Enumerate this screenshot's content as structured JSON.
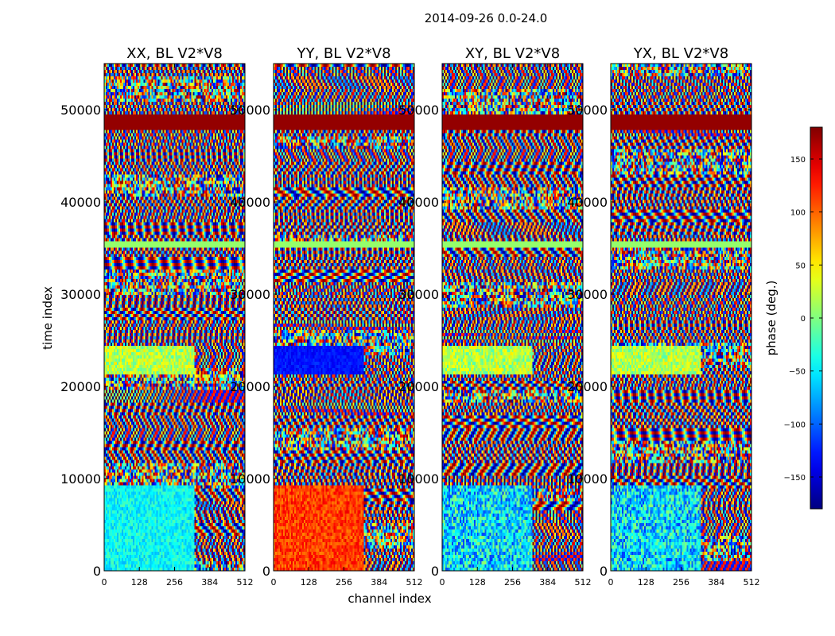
{
  "figure": {
    "suptitle": "2014-09-26 0.0-24.0"
  },
  "chart_data": {
    "type": "heatmap",
    "panels": [
      {
        "title": "XX, BL V2*V8",
        "pattern": "xx"
      },
      {
        "title": "YY, BL V2*V8",
        "pattern": "yy"
      },
      {
        "title": "XY, BL V2*V8",
        "pattern": "xy"
      },
      {
        "title": "YX, BL V2*V8",
        "pattern": "yx"
      }
    ],
    "xlabel": "channel index",
    "ylabel": "time index",
    "xlim": [
      0,
      512
    ],
    "ylim": [
      0,
      55000
    ],
    "x_ticks": [
      "0",
      "128",
      "256",
      "384",
      "512"
    ],
    "y_ticks": [
      "0",
      "10000",
      "20000",
      "30000",
      "40000",
      "50000"
    ],
    "x_tick_values": [
      0,
      128,
      256,
      384,
      512
    ],
    "y_tick_values": [
      0,
      10000,
      20000,
      30000,
      40000,
      50000
    ],
    "colorbar": {
      "label": "phase (deg.)",
      "range": [
        -180,
        180
      ],
      "ticks": [
        "150",
        "100",
        "50",
        "0",
        "−50",
        "−100",
        "−150"
      ],
      "tick_values": [
        150,
        100,
        50,
        0,
        -50,
        -100,
        -150
      ],
      "colormap": "jet"
    }
  }
}
